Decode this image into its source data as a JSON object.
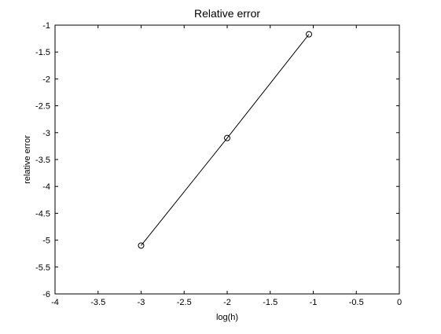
{
  "chart_data": {
    "type": "line",
    "title": "Relative error",
    "xlabel": "log(h)",
    "ylabel": "relative error",
    "xlim": [
      -4,
      0
    ],
    "ylim": [
      -6,
      -1
    ],
    "xticks": [
      -4,
      -3.5,
      -3,
      -2.5,
      -2,
      -1.5,
      -1,
      -0.5,
      0
    ],
    "xtick_labels": [
      "-4",
      "-3.5",
      "-3",
      "-2.5",
      "-2",
      "-1.5",
      "-1",
      "-0.5",
      "0"
    ],
    "yticks": [
      -1,
      -1.5,
      -2,
      -2.5,
      -3,
      -3.5,
      -4,
      -4.5,
      -5,
      -5.5,
      -6
    ],
    "ytick_labels": [
      "-1",
      "-1.5",
      "-2",
      "-2.5",
      "-3",
      "-3.5",
      "-4",
      "-4.5",
      "-5",
      "-5.5",
      "-6"
    ],
    "grid": false,
    "series": [
      {
        "x": [
          -3,
          -2,
          -1.05
        ],
        "y": [
          -5.1,
          -3.1,
          -1.17
        ],
        "marker": "circle",
        "color": "#000000"
      }
    ]
  }
}
